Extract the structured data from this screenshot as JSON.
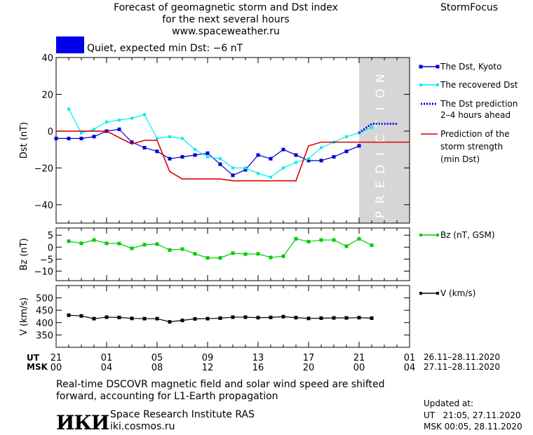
{
  "header": {
    "line1": "Forecast of geomagnetic storm and Dst index",
    "line2": "for the next several hours",
    "url": "www.spaceweather.ru",
    "brand": "StormFocus"
  },
  "status": {
    "label": "Quiet, expected min Dst: −6 nT",
    "color": "#0000ee"
  },
  "legend": {
    "dst_kyoto": "The Dst, Kyoto",
    "dst_recovered": "The recovered Dst",
    "dst_prediction_1": "The Dst prediction",
    "dst_prediction_2": "2–4 hours ahead",
    "strength_1": "Prediction of the",
    "strength_2": "storm strength",
    "strength_3": "(min Dst)",
    "bz": "Bz (nT, GSM)",
    "v": "V (km/s)"
  },
  "time_axis": {
    "ut_label": "UT",
    "msk_label": "MSK",
    "ut_ticks": [
      "21",
      "01",
      "05",
      "09",
      "13",
      "17",
      "21",
      "01"
    ],
    "msk_ticks": [
      "00",
      "04",
      "08",
      "12",
      "16",
      "20",
      "00",
      "04"
    ],
    "ut_range": "26.11–28.11.2020",
    "msk_range": "27.11–28.11.2020"
  },
  "prediction_label": "PREDICTION",
  "footer": {
    "note_1": "Real-time DSCOVR magnetic field and solar wind speed are shifted",
    "note_2": "forward, accounting for L1-Earth propagation",
    "logo": "ИКИ",
    "institute": "Space Research Institute RAS",
    "site": "iki.cosmos.ru",
    "updated_label": "Updated at:",
    "updated_ut": "UT   21:05, 27.11.2020",
    "updated_msk": "MSK 00:05, 28.11.2020"
  },
  "chart_data": [
    {
      "type": "line",
      "ylabel": "Dst (nT)",
      "xlim": [
        0,
        28
      ],
      "ylim": [
        -50,
        40
      ],
      "yticks": [
        40,
        20,
        0,
        -20,
        -40
      ],
      "prediction_region": [
        24,
        28
      ],
      "series": [
        {
          "name": "The Dst, Kyoto",
          "color": "#0000cc",
          "x": [
            0,
            1,
            2,
            3,
            4,
            5,
            6,
            7,
            8,
            9,
            10,
            11,
            12,
            13,
            14,
            15,
            16,
            17,
            18,
            19,
            20,
            21,
            22,
            23,
            24
          ],
          "y": [
            -4,
            -4,
            -4,
            -3,
            0,
            1,
            -6,
            -9,
            -11,
            -15,
            -14,
            -13,
            -12,
            -18,
            -24,
            -21,
            -13,
            -15,
            -10,
            -13,
            -16,
            -16,
            -14,
            -11,
            -8
          ]
        },
        {
          "name": "The recovered Dst",
          "color": "#00eeee",
          "x": [
            1,
            2,
            3,
            4,
            5,
            6,
            7,
            8,
            9,
            10,
            11,
            12,
            13,
            14,
            15,
            16,
            17,
            18,
            19,
            20,
            21,
            22,
            23,
            24,
            25
          ],
          "y": [
            12,
            -1,
            1,
            5,
            6,
            7,
            9,
            -4,
            -3,
            -4,
            -10,
            -14,
            -15,
            -20,
            -20,
            -23,
            -25,
            -20,
            -17,
            -15,
            -9,
            -6,
            -3,
            -1,
            2
          ]
        },
        {
          "name": "The Dst prediction 2–4 hours ahead",
          "color": "#0000ee",
          "x": [
            24,
            25,
            26,
            27
          ],
          "y": [
            -1,
            4,
            4,
            4
          ]
        },
        {
          "name": "Prediction of the storm strength (min Dst)",
          "color": "#dd0000",
          "x": [
            0,
            4,
            6,
            7,
            8,
            9,
            10,
            11,
            12,
            13,
            14,
            19,
            20,
            21,
            22,
            23,
            24,
            28
          ],
          "y": [
            0,
            0,
            -7,
            -5,
            -5,
            -22,
            -26,
            -26,
            -26,
            -26,
            -27,
            -27,
            -8,
            -6,
            -6,
            -6,
            -6,
            -6
          ]
        }
      ]
    },
    {
      "type": "line",
      "ylabel": "Bz (nT)",
      "xlim": [
        0,
        28
      ],
      "ylim": [
        -14,
        8
      ],
      "yticks": [
        5,
        0,
        -5,
        -10
      ],
      "series": [
        {
          "name": "Bz (nT, GSM)",
          "color": "#00cc00",
          "x": [
            1,
            2,
            3,
            4,
            5,
            6,
            7,
            8,
            9,
            10,
            11,
            12,
            13,
            14,
            15,
            16,
            17,
            18,
            19,
            20,
            21,
            22,
            23,
            24,
            25
          ],
          "y": [
            2.5,
            1.6,
            3,
            1.6,
            1.5,
            -0.5,
            1,
            1.3,
            -1.2,
            -0.8,
            -2.8,
            -4.5,
            -4.5,
            -2.5,
            -2.9,
            -2.8,
            -4.3,
            -3.8,
            3.5,
            2.3,
            3,
            3,
            0.4,
            3.5,
            0.8
          ]
        }
      ]
    },
    {
      "type": "line",
      "ylabel": "V (km/s)",
      "xlim": [
        0,
        28
      ],
      "ylim": [
        300,
        550
      ],
      "yticks": [
        500,
        450,
        400,
        350
      ],
      "series": [
        {
          "name": "V (km/s)",
          "color": "#000000",
          "x": [
            1,
            2,
            3,
            4,
            5,
            6,
            7,
            8,
            9,
            10,
            11,
            12,
            13,
            14,
            15,
            16,
            17,
            18,
            19,
            20,
            21,
            22,
            23,
            24,
            25
          ],
          "y": [
            430,
            427,
            416,
            422,
            421,
            417,
            416,
            416,
            403,
            409,
            415,
            416,
            418,
            422,
            422,
            420,
            421,
            424,
            420,
            417,
            418,
            419,
            419,
            420,
            418
          ]
        }
      ]
    }
  ]
}
